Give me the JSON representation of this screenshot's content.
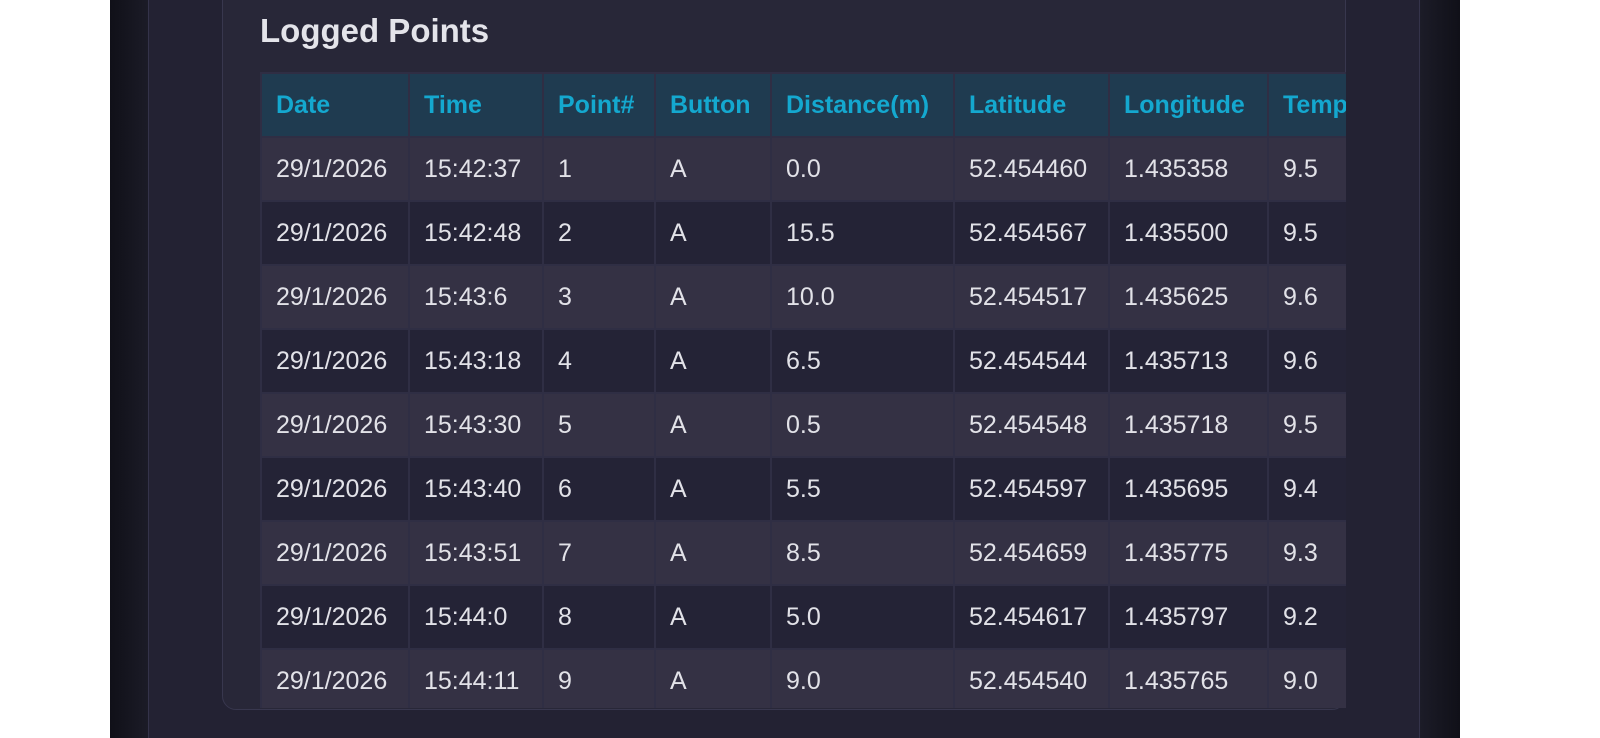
{
  "section_title": "Logged Points",
  "table": {
    "columns": [
      "Date",
      "Time",
      "Point#",
      "Button",
      "Distance(m)",
      "Latitude",
      "Longitude",
      "Temp"
    ],
    "rows": [
      [
        "29/1/2026",
        "15:42:37",
        "1",
        "A",
        "0.0",
        "52.454460",
        "1.435358",
        "9.5"
      ],
      [
        "29/1/2026",
        "15:42:48",
        "2",
        "A",
        "15.5",
        "52.454567",
        "1.435500",
        "9.5"
      ],
      [
        "29/1/2026",
        "15:43:6",
        "3",
        "A",
        "10.0",
        "52.454517",
        "1.435625",
        "9.6"
      ],
      [
        "29/1/2026",
        "15:43:18",
        "4",
        "A",
        "6.5",
        "52.454544",
        "1.435713",
        "9.6"
      ],
      [
        "29/1/2026",
        "15:43:30",
        "5",
        "A",
        "0.5",
        "52.454548",
        "1.435718",
        "9.5"
      ],
      [
        "29/1/2026",
        "15:43:40",
        "6",
        "A",
        "5.5",
        "52.454597",
        "1.435695",
        "9.4"
      ],
      [
        "29/1/2026",
        "15:43:51",
        "7",
        "A",
        "8.5",
        "52.454659",
        "1.435775",
        "9.3"
      ],
      [
        "29/1/2026",
        "15:44:0",
        "8",
        "A",
        "5.0",
        "52.454617",
        "1.435797",
        "9.2"
      ],
      [
        "29/1/2026",
        "15:44:11",
        "9",
        "A",
        "9.0",
        "52.454540",
        "1.435765",
        "9.0"
      ]
    ]
  },
  "colors": {
    "header_text": "#14a8cf",
    "header_bg": "#1f3b50",
    "row_odd": "#343144",
    "row_even": "#242336"
  }
}
